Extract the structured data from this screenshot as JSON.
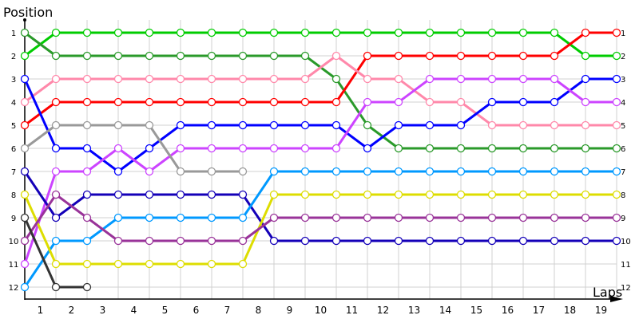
{
  "chart_data": {
    "type": "line",
    "ylabel": "Position",
    "xlabel": "Laps",
    "x_tick_labels": [
      "1",
      "2",
      "3",
      "4",
      "5",
      "6",
      "7",
      "8",
      "9",
      "10",
      "11",
      "12",
      "13",
      "14",
      "15",
      "16",
      "17",
      "18",
      "19"
    ],
    "y_tick_labels": [
      "1",
      "2",
      "3",
      "4",
      "5",
      "6",
      "7",
      "8",
      "9",
      "10",
      "11",
      "12"
    ],
    "y_inverted": true,
    "ylim": [
      1,
      12
    ],
    "grid": true,
    "series": [
      {
        "color": "#00cc00",
        "values": [
          2,
          1,
          1,
          1,
          1,
          1,
          1,
          1,
          1,
          1,
          1,
          1,
          1,
          1,
          1,
          1,
          1,
          1,
          2,
          2
        ]
      },
      {
        "color": "#2a9a2a",
        "values": [
          1,
          2,
          2,
          2,
          2,
          2,
          2,
          2,
          2,
          2,
          3,
          5,
          6,
          6,
          6,
          6,
          6,
          6,
          6,
          6
        ]
      },
      {
        "color": "#ff0000",
        "values": [
          5,
          4,
          4,
          4,
          4,
          4,
          4,
          4,
          4,
          4,
          4,
          2,
          2,
          2,
          2,
          2,
          2,
          2,
          1,
          1
        ]
      },
      {
        "color": "#ff88aa",
        "values": [
          4,
          3,
          3,
          3,
          3,
          3,
          3,
          3,
          3,
          3,
          2,
          3,
          3,
          4,
          4,
          5,
          5,
          5,
          5,
          5
        ]
      },
      {
        "color": "#0000ff",
        "values": [
          3,
          6,
          6,
          7,
          6,
          5,
          5,
          5,
          5,
          5,
          5,
          6,
          5,
          5,
          5,
          4,
          4,
          4,
          3,
          3
        ]
      },
      {
        "color": "#cc44ff",
        "values": [
          11,
          7,
          7,
          6,
          7,
          6,
          6,
          6,
          6,
          6,
          6,
          4,
          4,
          3,
          3,
          3,
          3,
          3,
          4,
          4
        ]
      },
      {
        "color": "#999999",
        "values": [
          6,
          5,
          5,
          5,
          5,
          7,
          7,
          7
        ]
      },
      {
        "color": "#1400b8",
        "values": [
          7,
          9,
          8,
          8,
          8,
          8,
          8,
          8,
          10,
          10,
          10,
          10,
          10,
          10,
          10,
          10,
          10,
          10,
          10,
          10
        ]
      },
      {
        "color": "#0099ff",
        "values": [
          12,
          10,
          10,
          9,
          9,
          9,
          9,
          9,
          7,
          7,
          7,
          7,
          7,
          7,
          7,
          7,
          7,
          7,
          7,
          7
        ]
      },
      {
        "color": "#dddd00",
        "values": [
          8,
          11,
          11,
          11,
          11,
          11,
          11,
          11,
          8,
          8,
          8,
          8,
          8,
          8,
          8,
          8,
          8,
          8,
          8,
          8
        ]
      },
      {
        "color": "#993399",
        "values": [
          10,
          8,
          9,
          10,
          10,
          10,
          10,
          10,
          9,
          9,
          9,
          9,
          9,
          9,
          9,
          9,
          9,
          9,
          9,
          9
        ]
      },
      {
        "color": "#333333",
        "values": [
          9,
          12,
          12
        ]
      }
    ]
  }
}
